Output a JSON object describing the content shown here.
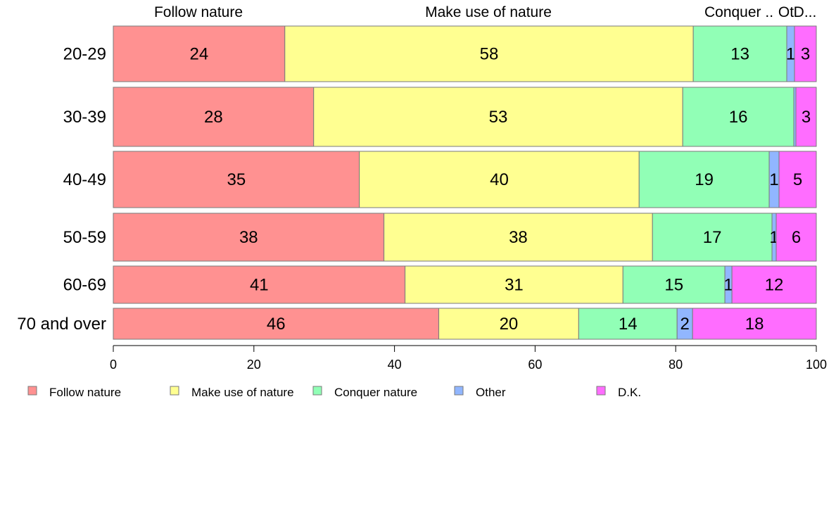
{
  "chart_data": {
    "type": "bar",
    "orientation": "horizontal",
    "stacked": true,
    "categories": [
      "20-29",
      "30-39",
      "40-49",
      "50-59",
      "60-69",
      "70 and over"
    ],
    "series": [
      {
        "name": "Follow nature",
        "color": "#ff9191",
        "values": [
          24,
          28,
          35,
          38,
          41,
          46
        ],
        "cumulative_start": [
          0,
          0,
          0,
          0,
          0,
          0
        ],
        "width": [
          24.4,
          28.5,
          35.0,
          38.5,
          41.5,
          46.3
        ]
      },
      {
        "name": "Make use of nature",
        "color": "#ffff91",
        "values": [
          58,
          53,
          40,
          38,
          31,
          20
        ],
        "cumulative_start": [
          24.4,
          28.5,
          35.0,
          38.5,
          41.5,
          46.3
        ],
        "width": [
          58.1,
          52.5,
          39.8,
          38.2,
          31.0,
          19.9
        ]
      },
      {
        "name": "Conquer nature",
        "color": "#91ffb6",
        "values": [
          13,
          16,
          19,
          17,
          15,
          14
        ],
        "cumulative_start": [
          82.5,
          81.0,
          74.8,
          76.7,
          72.5,
          66.2
        ],
        "width": [
          13.3,
          15.8,
          18.5,
          17.0,
          14.5,
          14.0
        ]
      },
      {
        "name": "Other",
        "color": "#91b6ff",
        "values": [
          1,
          0,
          1,
          1,
          1,
          2
        ],
        "cumulative_start": [
          95.8,
          96.8,
          93.3,
          93.7,
          87.0,
          80.2
        ],
        "width": [
          1.1,
          0.3,
          1.4,
          0.6,
          1.0,
          2.2
        ]
      },
      {
        "name": "D.K.",
        "color": "#ff6dff",
        "values": [
          3,
          3,
          5,
          6,
          12,
          18
        ],
        "cumulative_start": [
          96.9,
          97.1,
          94.7,
          94.3,
          88.0,
          82.4
        ],
        "width": [
          3.1,
          2.9,
          5.3,
          5.7,
          12.0,
          17.6
        ]
      }
    ],
    "top_labels": [
      "Follow nature",
      "Make use of nature",
      "Conquer ..",
      "Ot",
      "D..."
    ],
    "xlim": [
      0,
      100
    ],
    "xticks": [
      "0",
      "20",
      "40",
      "60",
      "80",
      "100"
    ],
    "legend_position": "bottom",
    "grid": false
  }
}
